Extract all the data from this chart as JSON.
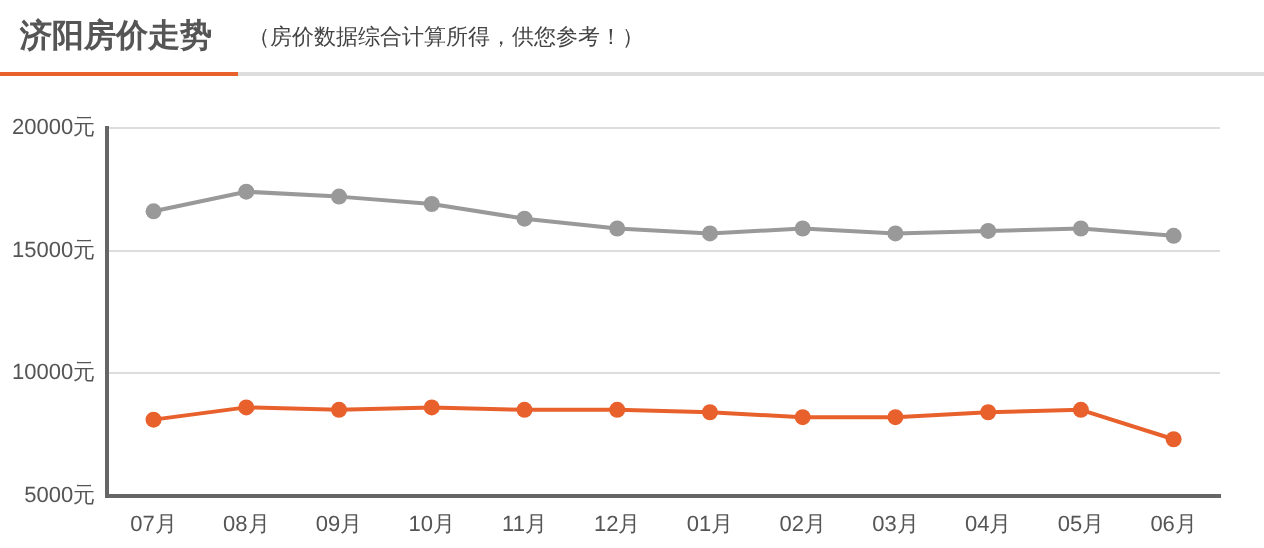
{
  "chart_data": {
    "type": "line",
    "title": "济阳房价走势",
    "subtitle": "（房价数据综合计算所得，供您参考！）",
    "categories": [
      "07月",
      "08月",
      "09月",
      "10月",
      "11月",
      "12月",
      "01月",
      "02月",
      "03月",
      "04月",
      "05月",
      "06月"
    ],
    "series": [
      {
        "color": "#999999",
        "values": [
          16600,
          17400,
          17200,
          16900,
          16300,
          15900,
          15700,
          15900,
          15700,
          15800,
          15900,
          15600
        ]
      },
      {
        "color": "#e8602c",
        "values": [
          8100,
          8600,
          8500,
          8600,
          8500,
          8500,
          8400,
          8200,
          8200,
          8400,
          8500,
          7300
        ]
      }
    ],
    "ylim": [
      5000,
      20000
    ],
    "yticks": [
      {
        "value": 5000,
        "label": "5000元"
      },
      {
        "value": 10000,
        "label": "10000元"
      },
      {
        "value": 15000,
        "label": "15000元"
      },
      {
        "value": 20000,
        "label": "20000元"
      }
    ],
    "grid": "y",
    "legend": false,
    "marker": "circle"
  }
}
